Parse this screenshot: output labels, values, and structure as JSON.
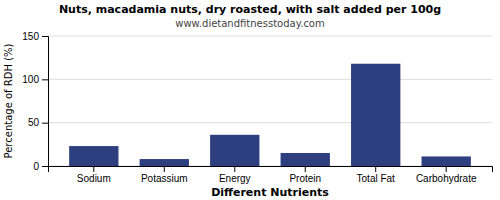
{
  "chart_data": {
    "type": "bar",
    "title": "Nuts, macadamia nuts, dry roasted, with salt added per 100g",
    "subtitle": "www.dietandfitnesstoday.com",
    "xlabel": "Different Nutrients",
    "ylabel": "Percentage of RDH (%)",
    "categories": [
      "Sodium",
      "Potassium",
      "Energy",
      "Protein",
      "Total Fat",
      "Carbohydrate"
    ],
    "values": [
      23,
      8,
      36,
      15,
      118,
      11
    ],
    "color": "#2e3f7f",
    "ylim": [
      0,
      150
    ],
    "yticks": [
      0,
      50,
      100,
      150
    ],
    "grid": true
  }
}
